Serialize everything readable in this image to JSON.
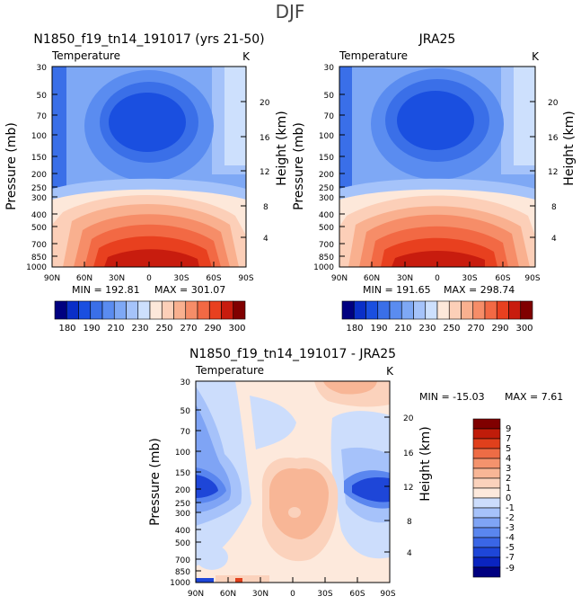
{
  "figure_title": "DJF",
  "colors": {
    "abs_scale": [
      "#000080",
      "#0a2fc8",
      "#1a4fe0",
      "#3a6fe8",
      "#5a8cf0",
      "#7ea8f5",
      "#a5c3fa",
      "#cde0fd",
      "#fde8da",
      "#fccfb8",
      "#f9b08f",
      "#f68d68",
      "#f26944",
      "#e8401f",
      "#c81c0e",
      "#800000"
    ],
    "diff_scale": [
      "#000080",
      "#0a24c0",
      "#1e46d8",
      "#3a66e6",
      "#5a86ef",
      "#7fa4f5",
      "#a6c2fa",
      "#ccddfc",
      "#fde9dc",
      "#fbd2bc",
      "#f8b696",
      "#f4936d",
      "#ee6c45",
      "#e0401c",
      "#c01c0a",
      "#800000"
    ]
  },
  "chart_data": [
    {
      "type": "contour",
      "title": "N1850_f19_tn14_191017 (yrs 21-50)",
      "subtitle_left": "Temperature",
      "subtitle_right": "K",
      "ylabel": "Pressure (mb)",
      "ylabel_right": "Height (km)",
      "x_ticks": [
        "90N",
        "60N",
        "30N",
        "0",
        "30S",
        "60S",
        "90S"
      ],
      "y_ticks": [
        "30",
        "50",
        "70",
        "100",
        "150",
        "200",
        "250",
        "300",
        "400",
        "500",
        "700",
        "850",
        "1000"
      ],
      "y_ticks_right": [
        "20",
        "16",
        "12",
        "8",
        "4"
      ],
      "stats": {
        "min_label": "MIN = 192.81",
        "max_label": "MAX = 301.07"
      },
      "colorbar_labels": [
        "180",
        "190",
        "210",
        "230",
        "250",
        "270",
        "290",
        "300"
      ]
    },
    {
      "type": "contour",
      "title": "JRA25",
      "subtitle_left": "Temperature",
      "subtitle_right": "K",
      "ylabel": "Pressure (mb)",
      "ylabel_right": "Height (km)",
      "x_ticks": [
        "90N",
        "60N",
        "30N",
        "0",
        "30S",
        "60S",
        "90S"
      ],
      "y_ticks": [
        "30",
        "50",
        "70",
        "100",
        "150",
        "200",
        "250",
        "300",
        "400",
        "500",
        "700",
        "850",
        "1000"
      ],
      "y_ticks_right": [
        "20",
        "16",
        "12",
        "8",
        "4"
      ],
      "stats": {
        "min_label": "MIN = 191.65",
        "max_label": "MAX = 298.74"
      },
      "colorbar_labels": [
        "180",
        "190",
        "210",
        "230",
        "250",
        "270",
        "290",
        "300"
      ]
    },
    {
      "type": "contour",
      "title": "N1850_f19_tn14_191017 - JRA25",
      "subtitle_left": "Temperature",
      "subtitle_right": "K",
      "ylabel": "Pressure (mb)",
      "ylabel_right": "Height (km)",
      "x_ticks": [
        "90N",
        "60N",
        "30N",
        "0",
        "30S",
        "60S",
        "90S"
      ],
      "y_ticks": [
        "30",
        "50",
        "70",
        "100",
        "150",
        "200",
        "250",
        "300",
        "400",
        "500",
        "700",
        "850",
        "1000"
      ],
      "y_ticks_right": [
        "20",
        "16",
        "12",
        "8",
        "4"
      ],
      "stats": {
        "min_label": "MIN = -15.03",
        "max_label": "MAX =    7.61"
      },
      "colorbar_labels": [
        "9",
        "7",
        "5",
        "4",
        "3",
        "2",
        "1",
        "0",
        "-1",
        "-2",
        "-3",
        "-4",
        "-5",
        "-7",
        "-9"
      ]
    }
  ]
}
